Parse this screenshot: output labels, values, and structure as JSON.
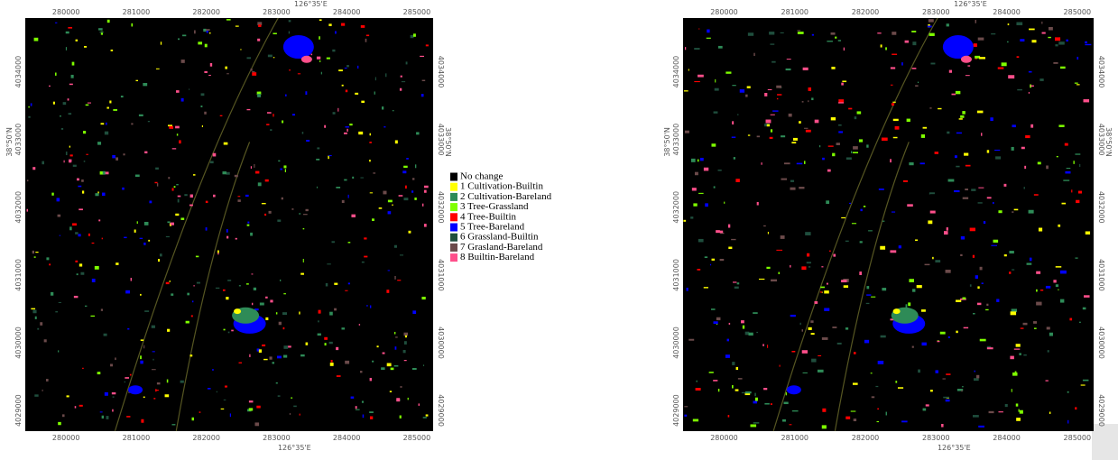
{
  "panels": [
    {
      "top_labels": [
        "280000",
        "281000",
        "282000",
        "283000",
        "284000",
        "285000"
      ],
      "top_meridian": "126°35'E",
      "bottom_labels": [
        "280000",
        "281000",
        "282000",
        "283000",
        "284000",
        "285000"
      ],
      "bottom_meridian": "126°35'E",
      "left_labels": [
        "4034000",
        "4033000",
        "4032000",
        "4031000",
        "4030000",
        "4029000"
      ],
      "left_parallel": "38°50'N",
      "right_labels": [
        "4034000",
        "4033000",
        "4032000",
        "4031000",
        "4030000",
        "4029000"
      ],
      "right_parallel": "38°50'N"
    },
    {
      "top_labels": [
        "280000",
        "281000",
        "282000",
        "283000",
        "284000",
        "285000"
      ],
      "top_meridian": "126°35'E",
      "bottom_labels": [
        "280000",
        "281000",
        "282000",
        "283000",
        "284000",
        "285000"
      ],
      "bottom_meridian": "126°35'E",
      "left_labels": [
        "4034000",
        "4033000",
        "4032000",
        "4031000",
        "4030000",
        "4029000"
      ],
      "left_parallel": "38°50'N",
      "right_labels": [
        "4034000",
        "4033000",
        "4032000",
        "4031000",
        "4030000",
        "4029000"
      ],
      "right_parallel": "38°50'N"
    }
  ],
  "legend": {
    "items": [
      {
        "label": "No change",
        "color": "#000000"
      },
      {
        "label": "1 Cultivation-Builtin",
        "color": "#ffff00"
      },
      {
        "label": "2 Cultivation-Bareland",
        "color": "#2e8b57"
      },
      {
        "label": "3 Tree-Grassland",
        "color": "#7fff00"
      },
      {
        "label": "4 Tree-Builtin",
        "color": "#ff0000"
      },
      {
        "label": "5 Tree-Bareland",
        "color": "#0000ff"
      },
      {
        "label": "6 Grassland-Builtin",
        "color": "#1f4e3d"
      },
      {
        "label": "7 Grasland-Bareland",
        "color": "#6b4a4a"
      },
      {
        "label": "8 Builtin-Bareland",
        "color": "#ff4f8b"
      }
    ]
  }
}
